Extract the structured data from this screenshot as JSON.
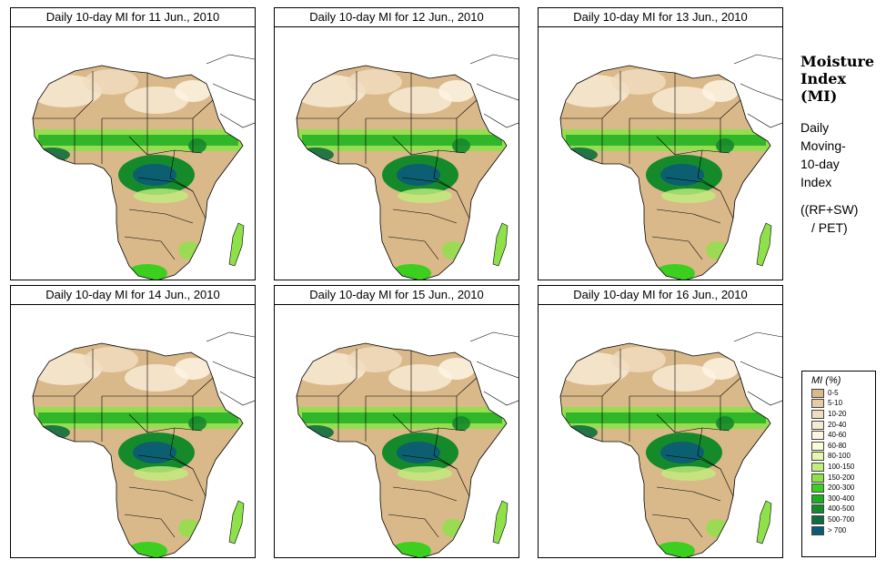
{
  "panels": [
    {
      "title": "Daily 10-day MI for  11 Jun., 2010"
    },
    {
      "title": "Daily 10-day MI for  12 Jun., 2010"
    },
    {
      "title": "Daily 10-day MI for  13 Jun., 2010"
    },
    {
      "title": "Daily 10-day MI for  14 Jun., 2010"
    },
    {
      "title": "Daily 10-day MI for  15 Jun., 2010"
    },
    {
      "title": "Daily 10-day MI for  16 Jun., 2010"
    }
  ],
  "side": {
    "heading_line1": "Moisture",
    "heading_line2": "Index",
    "heading_line3": "(MI)",
    "desc_line1": "Daily",
    "desc_line2": "Moving-",
    "desc_line3": "10-day",
    "desc_line4": "Index",
    "formula_line1": "((RF+SW)",
    "formula_line2": "/ PET)"
  },
  "legend": {
    "title": "MI (%)",
    "items": [
      {
        "label": "0-5",
        "color": "#d9b98a"
      },
      {
        "label": "5-10",
        "color": "#e6cba3"
      },
      {
        "label": "10-20",
        "color": "#f0dcbe"
      },
      {
        "label": "20-40",
        "color": "#f7ead2"
      },
      {
        "label": "40-60",
        "color": "#fdf4e3"
      },
      {
        "label": "60-80",
        "color": "#fbfdd6"
      },
      {
        "label": "80-100",
        "color": "#e5f7b0"
      },
      {
        "label": "100-150",
        "color": "#c2ee7d"
      },
      {
        "label": "150-200",
        "color": "#8fe14a"
      },
      {
        "label": "200-300",
        "color": "#3ccf1f"
      },
      {
        "label": "300-400",
        "color": "#1fae22"
      },
      {
        "label": "400-500",
        "color": "#158a2a"
      },
      {
        "label": "500-700",
        "color": "#0f6e3e"
      },
      {
        "label": "> 700",
        "color": "#0a5a78"
      }
    ]
  }
}
